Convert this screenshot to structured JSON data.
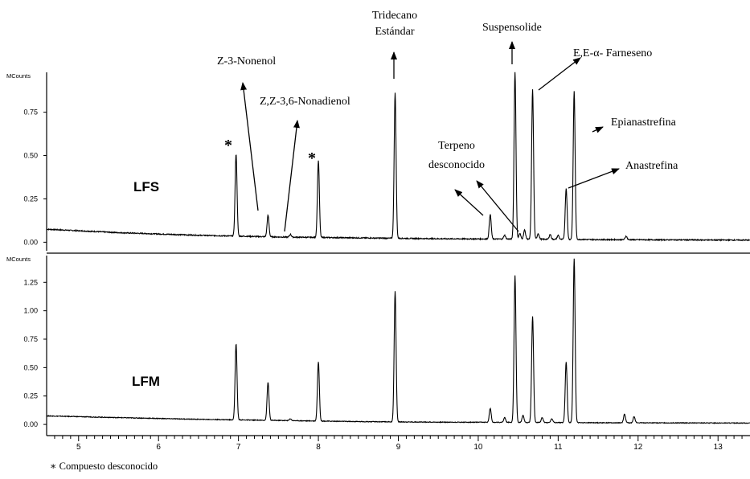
{
  "footnote": "∗ Compuesto desconocido",
  "x_ticks": [
    "5",
    "6",
    "7",
    "8",
    "9",
    "10",
    "11",
    "12",
    "13"
  ],
  "annotations": {
    "z3_nonenol": "Z-3-Nonenol",
    "nonadienol": "Z,Z-3,6-Nonadienol",
    "tridecano_line1": "Tridecano",
    "tridecano_line2": "Estándar",
    "suspensolide": "Suspensolide",
    "farneseno": "E,E-α- Farneseno",
    "epianastrefina": "Epianastrefina",
    "terpeno_line1": "Terpeno",
    "terpeno_line2": "desconocido",
    "anastrefina": "Anastrefina",
    "star_left": "*",
    "star_right": "*"
  },
  "chart_data": [
    {
      "type": "line",
      "panel_label": "LFS",
      "ylabel": "MCounts",
      "xlim": [
        4.6,
        13.4
      ],
      "ylim": [
        -0.04,
        0.98
      ],
      "y_ticks": [
        "0.00",
        "0.25",
        "0.50",
        "0.75"
      ],
      "baseline": [
        [
          4.6,
          0.075
        ],
        [
          5.5,
          0.055
        ],
        [
          6.5,
          0.04
        ],
        [
          7.5,
          0.03
        ],
        [
          8.5,
          0.025
        ],
        [
          9.5,
          0.02
        ],
        [
          10.5,
          0.018
        ],
        [
          11.5,
          0.015
        ],
        [
          13.4,
          0.012
        ]
      ],
      "peaks": [
        {
          "x": 6.97,
          "y": 0.51
        },
        {
          "x": 7.37,
          "y": 0.155
        },
        {
          "x": 7.65,
          "y": 0.045
        },
        {
          "x": 8.0,
          "y": 0.47
        },
        {
          "x": 8.96,
          "y": 0.86
        },
        {
          "x": 10.15,
          "y": 0.16
        },
        {
          "x": 10.33,
          "y": 0.04
        },
        {
          "x": 10.46,
          "y": 0.98
        },
        {
          "x": 10.52,
          "y": 0.05
        },
        {
          "x": 10.58,
          "y": 0.07
        },
        {
          "x": 10.68,
          "y": 0.88
        },
        {
          "x": 10.75,
          "y": 0.05
        },
        {
          "x": 10.9,
          "y": 0.045
        },
        {
          "x": 11.0,
          "y": 0.04
        },
        {
          "x": 11.1,
          "y": 0.31
        },
        {
          "x": 11.2,
          "y": 0.87
        },
        {
          "x": 11.85,
          "y": 0.035
        }
      ]
    },
    {
      "type": "line",
      "panel_label": "LFM",
      "ylabel": "MCounts",
      "xlim": [
        4.6,
        13.4
      ],
      "ylim": [
        -0.07,
        1.45
      ],
      "y_ticks": [
        "0.00",
        "0.25",
        "0.50",
        "0.75",
        "1.00",
        "1.25"
      ],
      "baseline": [
        [
          4.6,
          0.075
        ],
        [
          5.5,
          0.06
        ],
        [
          6.5,
          0.045
        ],
        [
          7.5,
          0.035
        ],
        [
          8.5,
          0.025
        ],
        [
          9.5,
          0.02
        ],
        [
          10.5,
          0.018
        ],
        [
          11.5,
          0.015
        ],
        [
          13.4,
          0.012
        ]
      ],
      "peaks": [
        {
          "x": 6.97,
          "y": 0.71
        },
        {
          "x": 7.37,
          "y": 0.37
        },
        {
          "x": 7.65,
          "y": 0.05
        },
        {
          "x": 8.0,
          "y": 0.55
        },
        {
          "x": 8.96,
          "y": 1.17
        },
        {
          "x": 10.15,
          "y": 0.14
        },
        {
          "x": 10.33,
          "y": 0.06
        },
        {
          "x": 10.46,
          "y": 1.31
        },
        {
          "x": 10.56,
          "y": 0.08
        },
        {
          "x": 10.68,
          "y": 0.95
        },
        {
          "x": 10.8,
          "y": 0.06
        },
        {
          "x": 10.92,
          "y": 0.05
        },
        {
          "x": 11.1,
          "y": 0.55
        },
        {
          "x": 11.2,
          "y": 1.46
        },
        {
          "x": 11.83,
          "y": 0.09
        },
        {
          "x": 11.95,
          "y": 0.07
        }
      ]
    }
  ]
}
